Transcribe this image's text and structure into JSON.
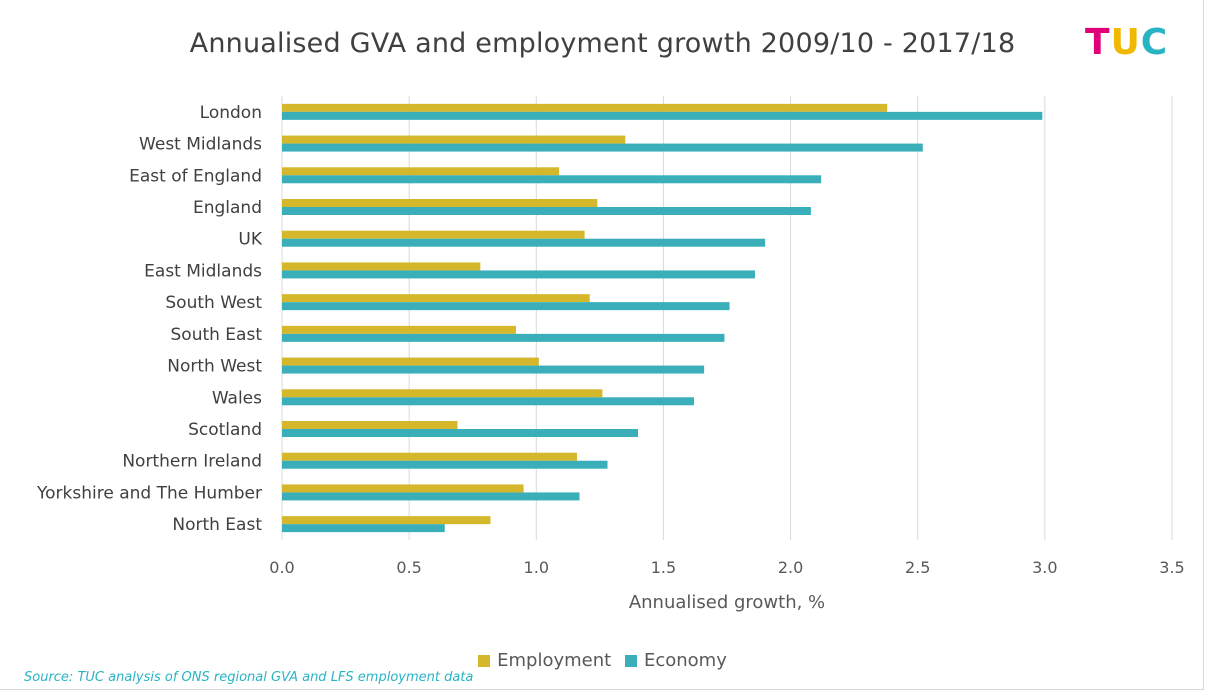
{
  "logo": {
    "t": "T",
    "u": "U",
    "c": "C"
  },
  "source": "Source: TUC analysis of ONS regional GVA and LFS employment data",
  "colors": {
    "employment": "#d4b72a",
    "economy": "#3aafb9",
    "grid": "#d9d9d9"
  },
  "chart_data": {
    "type": "bar",
    "orientation": "horizontal",
    "title": "Annualised GVA and employment growth 2009/10 - 2017/18",
    "xlabel": "Annualised growth, %",
    "ylabel": "",
    "xlim": [
      0,
      3.5
    ],
    "xticks": [
      "0.0",
      "0.5",
      "1.0",
      "1.5",
      "2.0",
      "2.5",
      "3.0",
      "3.5"
    ],
    "grid": "vertical",
    "legend": "bottom",
    "categories": [
      "London",
      "West Midlands",
      "East of England",
      "England",
      "UK",
      "East Midlands",
      "South West",
      "South East",
      "North West",
      "Wales",
      "Scotland",
      "Northern Ireland",
      "Yorkshire and The Humber",
      "North East"
    ],
    "series": [
      {
        "name": "Employment",
        "values": [
          2.38,
          1.35,
          1.09,
          1.24,
          1.19,
          0.78,
          1.21,
          0.92,
          1.01,
          1.26,
          0.69,
          1.16,
          0.95,
          0.82
        ]
      },
      {
        "name": "Economy",
        "values": [
          2.99,
          2.52,
          2.12,
          2.08,
          1.9,
          1.86,
          1.76,
          1.74,
          1.66,
          1.62,
          1.4,
          1.28,
          1.17,
          0.64
        ]
      }
    ]
  }
}
